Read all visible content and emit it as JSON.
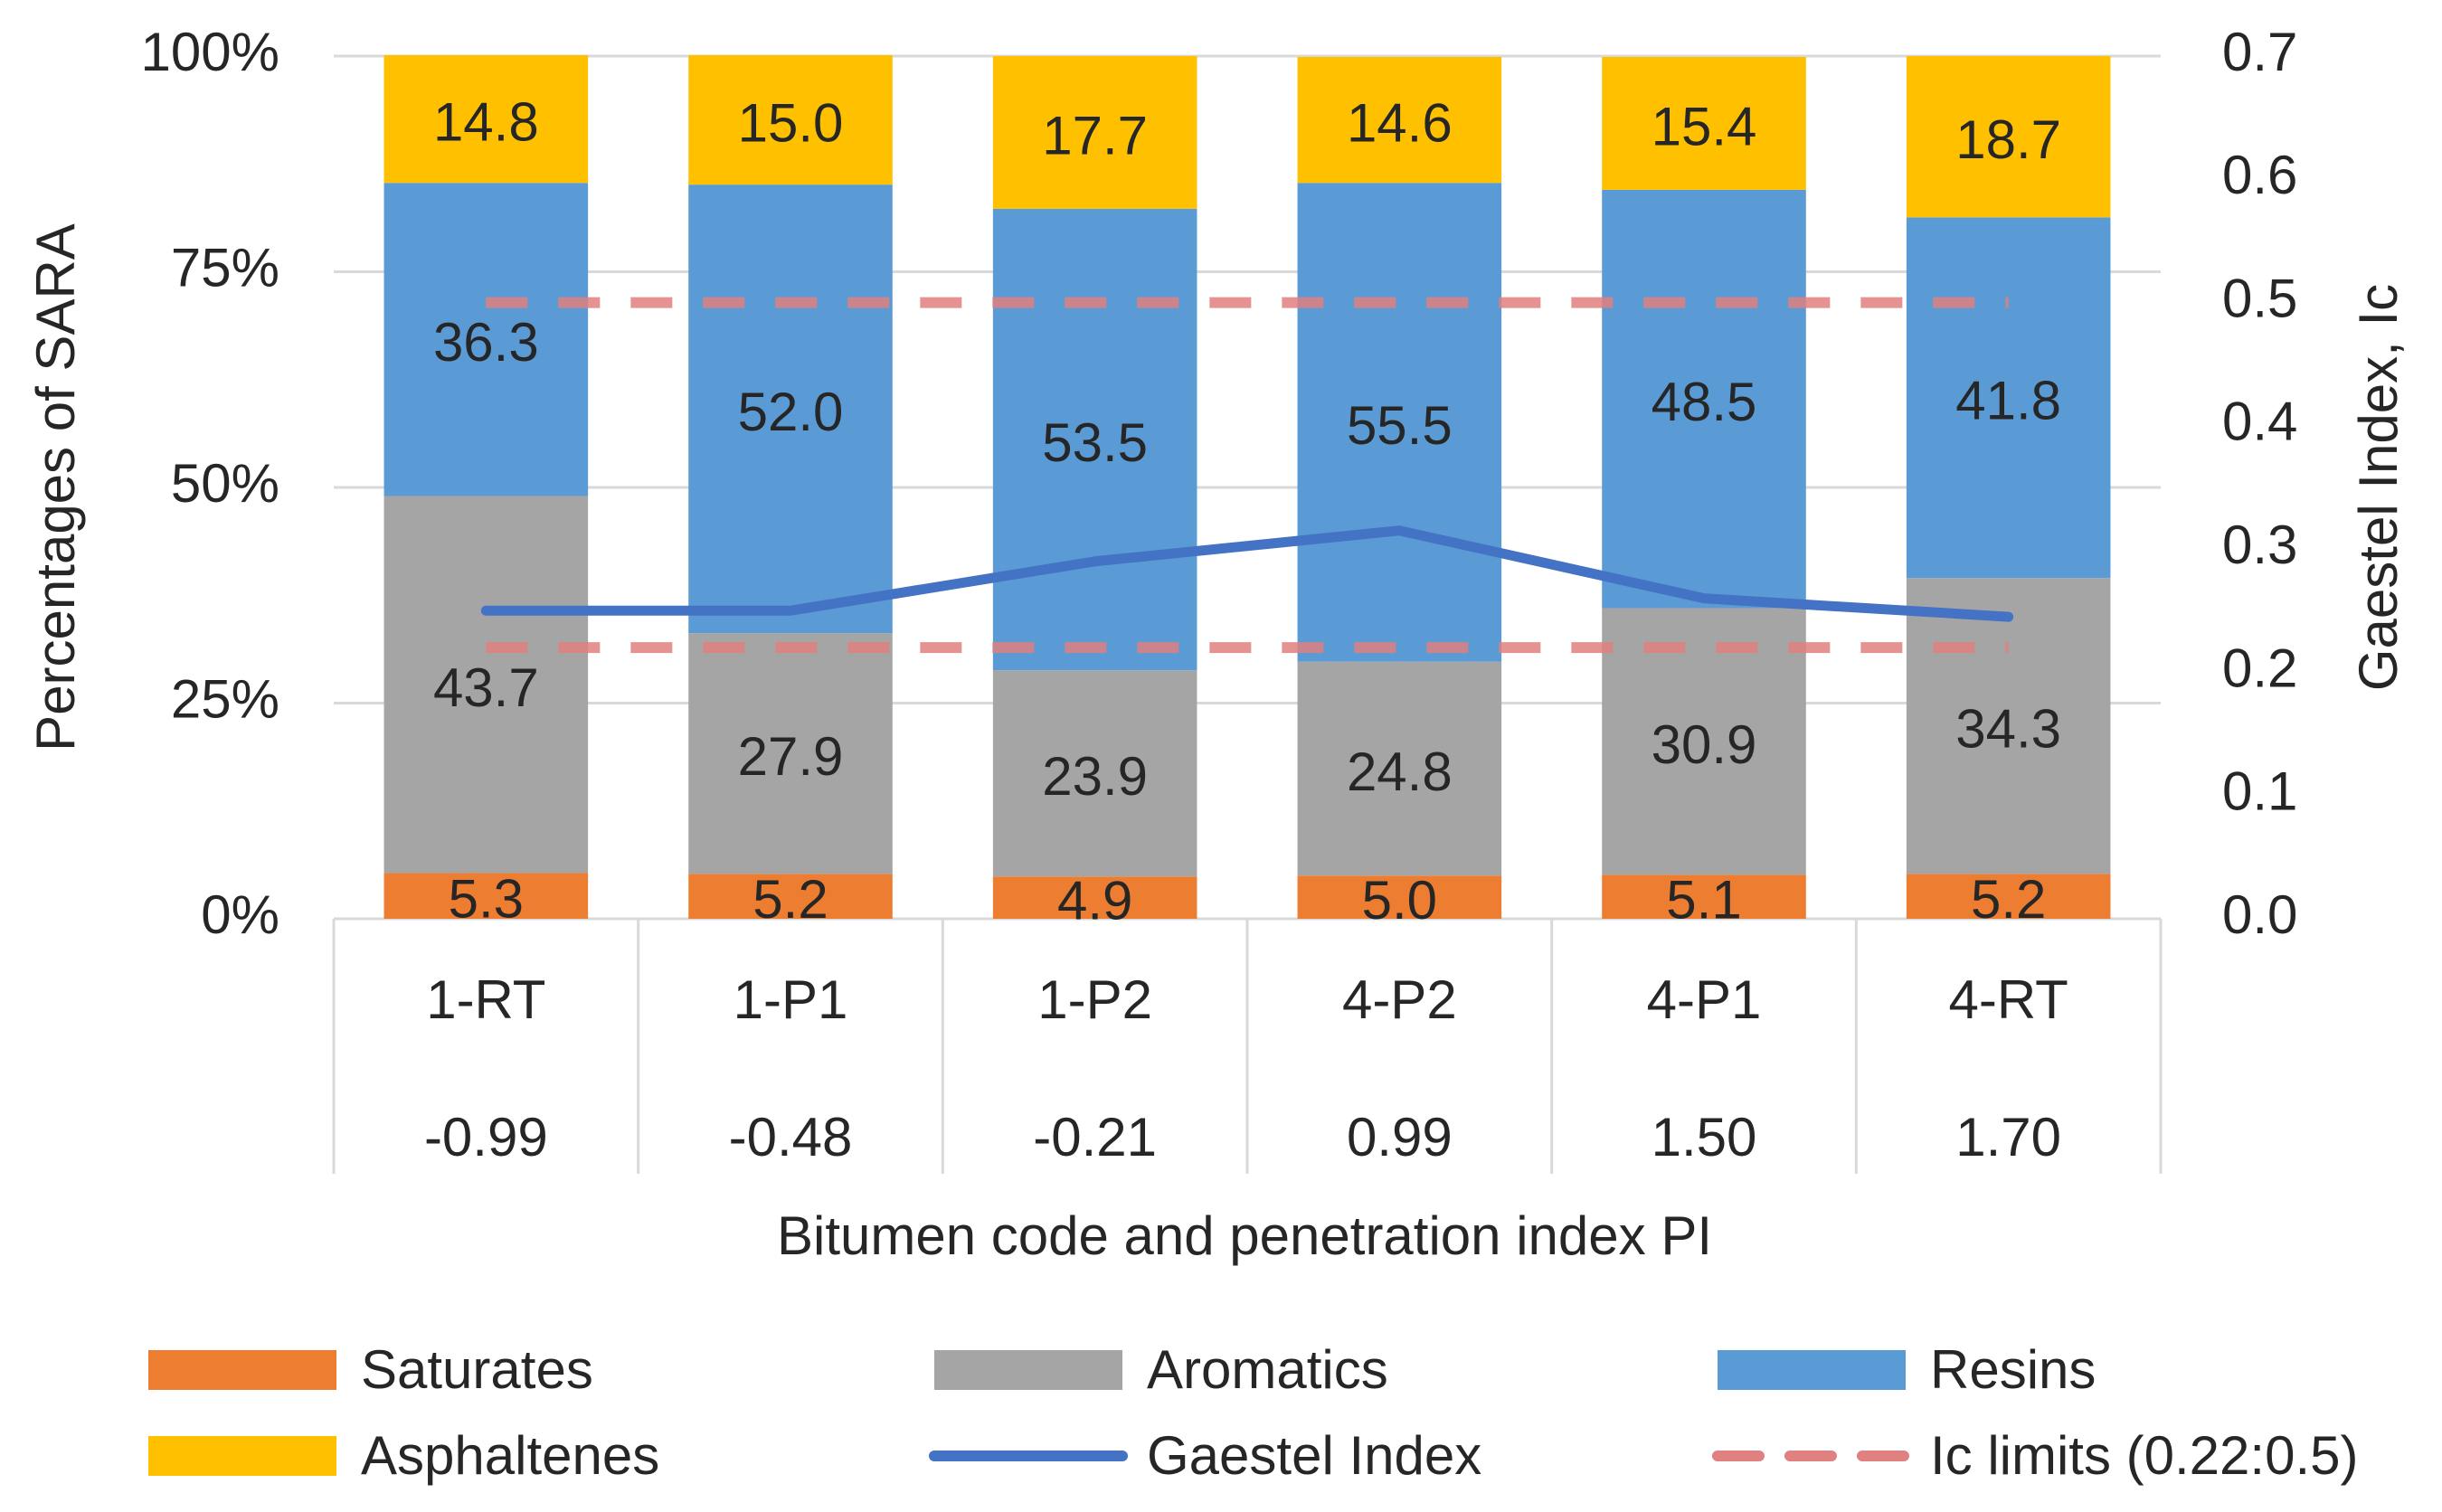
{
  "chart_data": {
    "type": "stacked_bar_line",
    "x_label": "Bitumen code and penetration index PI",
    "y_label": "Percentages of SARA",
    "y2_label": "Gaestel Index, Ic",
    "categories": [
      "1-RT",
      "1-P1",
      "1-P2",
      "4-P2",
      "4-P1",
      "4-RT"
    ],
    "pi_labels": [
      "-0.99",
      "-0.48",
      "-0.21",
      "0.99",
      "1.50",
      "1.70"
    ],
    "ylim": [
      0,
      100
    ],
    "yticks": [
      {
        "value": 0,
        "label": "0%"
      },
      {
        "value": 25,
        "label": "25%"
      },
      {
        "value": 50,
        "label": "50%"
      },
      {
        "value": 75,
        "label": "75%"
      },
      {
        "value": 100,
        "label": "100%"
      }
    ],
    "y2lim": [
      0,
      0.7
    ],
    "y2ticks": [
      {
        "value": 0,
        "label": "0.0"
      },
      0.1,
      0.2,
      0.3,
      0.4,
      0.5,
      0.6,
      0.7
    ],
    "grid": true,
    "series": [
      {
        "name": "Saturates",
        "color": "#ed7d31",
        "values": [
          5.3,
          5.2,
          4.9,
          5.0,
          5.1,
          5.2
        ],
        "value_labels": [
          "5.3",
          "5.2",
          "4.9",
          "5.0",
          "5.1",
          "5.2"
        ]
      },
      {
        "name": "Aromatics",
        "color": "#a5a5a5",
        "values": [
          43.7,
          27.9,
          23.9,
          24.8,
          30.9,
          34.3
        ],
        "value_labels": [
          "43.7",
          "27.9",
          "23.9",
          "24.8",
          "30.9",
          "34.3"
        ]
      },
      {
        "name": "Resins",
        "color": "#5b9bd5",
        "values": [
          36.3,
          52.0,
          53.5,
          55.5,
          48.5,
          41.8
        ],
        "value_labels": [
          "36.3",
          "52.0",
          "53.5",
          "55.5",
          "48.5",
          "41.8"
        ]
      },
      {
        "name": "Asphaltenes",
        "color": "#ffc000",
        "values": [
          14.8,
          15.0,
          17.7,
          14.6,
          15.4,
          18.7
        ],
        "value_labels": [
          "14.8",
          "15.0",
          "17.7",
          "14.6",
          "15.4",
          "18.7"
        ]
      },
      {
        "name": "Gaestel Index",
        "color": "#4472c4",
        "axis": "y2",
        "values": [
          0.25,
          0.25,
          0.29,
          0.315,
          0.26,
          0.245
        ]
      }
    ],
    "limit_lines": {
      "name": "Ic limits (0.22:0.5)",
      "color": "#e08080",
      "axis": "y2",
      "values": [
        0.22,
        0.5
      ]
    }
  }
}
